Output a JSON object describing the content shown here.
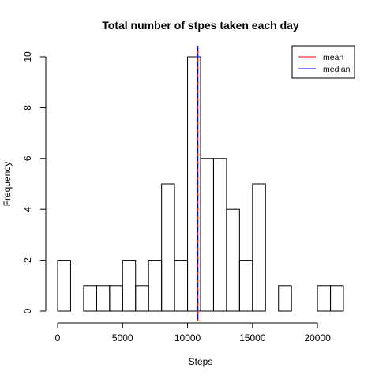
{
  "chart_data": {
    "type": "histogram",
    "title": "Total number of stpes taken each day",
    "xlabel": "Steps",
    "ylabel": "Frequency",
    "xlim": [
      0,
      22000
    ],
    "ylim": [
      0,
      10
    ],
    "bin_width": 1000,
    "bins": [
      {
        "from": 0,
        "to": 1000,
        "count": 2
      },
      {
        "from": 1000,
        "to": 2000,
        "count": 0
      },
      {
        "from": 2000,
        "to": 3000,
        "count": 1
      },
      {
        "from": 3000,
        "to": 4000,
        "count": 1
      },
      {
        "from": 4000,
        "to": 5000,
        "count": 1
      },
      {
        "from": 5000,
        "to": 6000,
        "count": 2
      },
      {
        "from": 6000,
        "to": 7000,
        "count": 1
      },
      {
        "from": 7000,
        "to": 8000,
        "count": 2
      },
      {
        "from": 8000,
        "to": 9000,
        "count": 5
      },
      {
        "from": 9000,
        "to": 10000,
        "count": 2
      },
      {
        "from": 10000,
        "to": 11000,
        "count": 10
      },
      {
        "from": 11000,
        "to": 12000,
        "count": 6
      },
      {
        "from": 12000,
        "to": 13000,
        "count": 6
      },
      {
        "from": 13000,
        "to": 14000,
        "count": 4
      },
      {
        "from": 14000,
        "to": 15000,
        "count": 2
      },
      {
        "from": 15000,
        "to": 16000,
        "count": 5
      },
      {
        "from": 16000,
        "to": 17000,
        "count": 0
      },
      {
        "from": 17000,
        "to": 18000,
        "count": 1
      },
      {
        "from": 18000,
        "to": 19000,
        "count": 0
      },
      {
        "from": 19000,
        "to": 20000,
        "count": 0
      },
      {
        "from": 20000,
        "to": 21000,
        "count": 1
      },
      {
        "from": 21000,
        "to": 22000,
        "count": 1
      }
    ],
    "x_ticks": [
      0,
      5000,
      10000,
      15000,
      20000
    ],
    "y_ticks": [
      0,
      2,
      4,
      6,
      8,
      10
    ],
    "reference_lines": [
      {
        "name": "mean",
        "value": 10766,
        "color": "#ff0000",
        "style": "solid"
      },
      {
        "name": "median",
        "value": 10765,
        "color": "#0000ff",
        "style": "dashed"
      }
    ],
    "legend": {
      "placement": "top-right",
      "entries": [
        {
          "label": "mean",
          "color": "#ff7f7f"
        },
        {
          "label": "median",
          "color": "#7f7fff"
        }
      ]
    },
    "grid": false
  }
}
